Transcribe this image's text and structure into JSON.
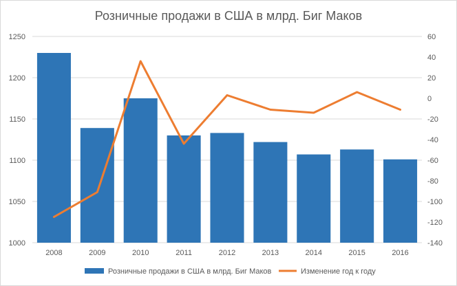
{
  "chart_data": {
    "type": "bar+line",
    "title": "Розничные продажи в США в млрд. Биг Маков",
    "categories": [
      "2008",
      "2009",
      "2010",
      "2011",
      "2012",
      "2013",
      "2014",
      "2015",
      "2016"
    ],
    "series": [
      {
        "name": "Розничные продажи в США в млрд. Биг Маков",
        "type": "bar",
        "axis": "left",
        "color": "#2e75b6",
        "values": [
          1230,
          1139,
          1175,
          1130,
          1133,
          1122,
          1107,
          1113,
          1101
        ]
      },
      {
        "name": "Изменение год к году",
        "type": "line",
        "axis": "right",
        "color": "#ed7d31",
        "values": [
          -115,
          -91,
          36,
          -44,
          3,
          -11,
          -14,
          6,
          -11
        ]
      }
    ],
    "y_left": {
      "min": 1000,
      "max": 1250,
      "step": 50,
      "ticks": [
        "1000",
        "1050",
        "1100",
        "1150",
        "1200",
        "1250"
      ]
    },
    "y_right": {
      "min": -140,
      "max": 60,
      "step": 20,
      "ticks": [
        "-140",
        "-120",
        "-100",
        "-80",
        "-60",
        "-40",
        "-20",
        "0",
        "20",
        "40",
        "60"
      ]
    },
    "grid": true,
    "legend": "bottom"
  }
}
